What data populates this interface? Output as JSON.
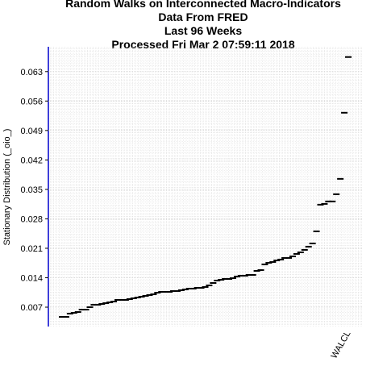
{
  "chart_data": {
    "type": "scatter",
    "title": [
      "Random Walks on Interconnected Macro-Indicators",
      "Data From FRED",
      "Last  96  Weeks",
      "Processed  Fri Mar  2 07:59:11 2018"
    ],
    "y_label": "Stationary Distribution (_oio_)",
    "categories": [
      null,
      null,
      null,
      null,
      null,
      null,
      null,
      null,
      null,
      null,
      null,
      null,
      null,
      null,
      null,
      null,
      null,
      null,
      null,
      null,
      null,
      null,
      null,
      null,
      null,
      null,
      null,
      null,
      null,
      null,
      null,
      null,
      null,
      null,
      null,
      null,
      null,
      null,
      null,
      null,
      null,
      null,
      null,
      null,
      null,
      null,
      null,
      null,
      null,
      null,
      null,
      null,
      null,
      null,
      null,
      null,
      null,
      null,
      null,
      null,
      null,
      null,
      null,
      null,
      null,
      null,
      null,
      null,
      null,
      null,
      null,
      null,
      "WALCL"
    ],
    "values": [
      0.0047,
      0.0047,
      0.00547,
      0.00566,
      0.00585,
      0.00642,
      0.00642,
      0.007,
      0.00758,
      0.00758,
      0.00777,
      0.00796,
      0.00815,
      0.00834,
      0.00873,
      0.00873,
      0.00873,
      0.00892,
      0.00911,
      0.0093,
      0.00949,
      0.00969,
      0.00988,
      0.01007,
      0.01045,
      0.01064,
      0.01064,
      0.01064,
      0.01084,
      0.01084,
      0.01103,
      0.01122,
      0.01141,
      0.01141,
      0.0116,
      0.0116,
      0.0118,
      0.01218,
      0.01275,
      0.01333,
      0.01352,
      0.01371,
      0.01371,
      0.0139,
      0.01429,
      0.01448,
      0.01448,
      0.01467,
      0.01467,
      0.01563,
      0.01582,
      0.01717,
      0.01755,
      0.01774,
      0.01812,
      0.01832,
      0.0187,
      0.0187,
      0.01908,
      0.01966,
      0.02004,
      0.02062,
      0.02138,
      0.02215,
      0.02503,
      0.03136,
      0.03155,
      0.03213,
      0.03213,
      0.03385,
      0.0375,
      0.05322,
      0.06646
    ],
    "color": "#000000",
    "label_color": "#00008b",
    "axis_color": "#0000cd",
    "ylim": [
      0.0024,
      0.0689
    ],
    "yticks": [
      0.007,
      0.014,
      0.021,
      0.028,
      0.035,
      0.042,
      0.049,
      0.056,
      0.063
    ],
    "grid": true
  }
}
